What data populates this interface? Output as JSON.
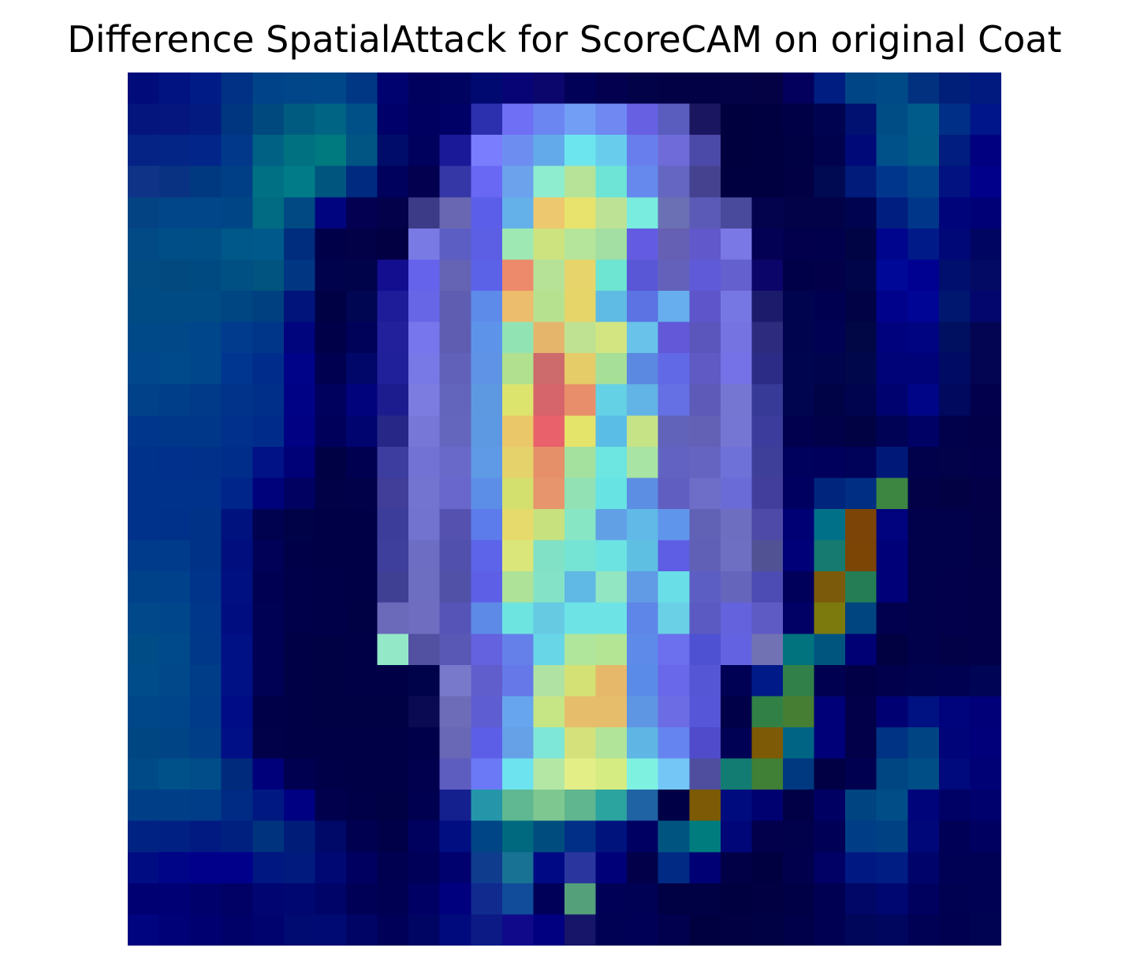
{
  "chart_data": {
    "type": "heatmap",
    "title": "Difference SpatialAttack for ScoreCAM on original Coat",
    "axes_visible": false,
    "grid": false,
    "legend": "none",
    "rows": 28,
    "cols": 28,
    "cells": [
      [
        "#010b79",
        "#011381",
        "#011b86",
        "#003184",
        "#004388",
        "#004689",
        "#00478a",
        "#003784",
        "#00036f",
        "#00015e",
        "#000460",
        "#000970",
        "#070575",
        "#0b066b",
        "#020158",
        "#02004f",
        "#020248",
        "#030146",
        "#030146",
        "#030246",
        "#040244",
        "#02005c",
        "#001d81",
        "#004687",
        "#004a88",
        "#02327f",
        "#001f78",
        "#001a80"
      ],
      [
        "#04157d",
        "#05167f",
        "#031a81",
        "#00357f",
        "#00497e",
        "#005b80",
        "#006584",
        "#005088",
        "#00006a",
        "#000061",
        "#000167",
        "#2c2fae",
        "#6e6ff5",
        "#6b85f1",
        "#739ef6",
        "#6f88f2",
        "#6760e2",
        "#5a5cbe",
        "#1b1660",
        "#00003e",
        "#000041",
        "#000046",
        "#00034f",
        "#001171",
        "#004d86",
        "#005b8a",
        "#002f88",
        "#00158a"
      ],
      [
        "#042385",
        "#022586",
        "#02258a",
        "#01388a",
        "#006184",
        "#007180",
        "#00797f",
        "#005583",
        "#000c6a",
        "#00015c",
        "#1a1998",
        "#7a7dfd",
        "#6e8df1",
        "#62aae9",
        "#6de5ef",
        "#68cded",
        "#687eed",
        "#6f6bd8",
        "#4b4aa8",
        "#00003e",
        "#000041",
        "#000045",
        "#00024e",
        "#000978",
        "#00518a",
        "#005b87",
        "#001d7f",
        "#000080"
      ],
      [
        "#0f3487",
        "#093382",
        "#00397f",
        "#003f86",
        "#007185",
        "#007b87",
        "#00557e",
        "#002a80",
        "#00005d",
        "#02004f",
        "#3637a7",
        "#6968f5",
        "#6ca1ec",
        "#8dedce",
        "#b6e397",
        "#6de4d6",
        "#6589ed",
        "#6466c1",
        "#45438f",
        "#000040",
        "#000040",
        "#020045",
        "#000a52",
        "#001b79",
        "#00378d",
        "#00458b",
        "#021281",
        "#00008a"
      ],
      [
        "#034384",
        "#004688",
        "#004689",
        "#004686",
        "#006b82",
        "#004983",
        "#00047e",
        "#030051",
        "#030149",
        "#3c3b88",
        "#6a67b2",
        "#5a5ee9",
        "#64b1ea",
        "#edc86e",
        "#e8e36c",
        "#bde296",
        "#79ecdf",
        "#6a70b3",
        "#5b5ab6",
        "#4a4a9c",
        "#02034c",
        "#010248",
        "#010248",
        "#00034f",
        "#001e7f",
        "#00368a",
        "#00047a",
        "#000076"
      ],
      [
        "#014a86",
        "#004e88",
        "#004e86",
        "#00578a",
        "#00598b",
        "#002d7e",
        "#000049",
        "#020047",
        "#020043",
        "#7a7ae4",
        "#5c5ec3",
        "#5c5fe4",
        "#9ee9b3",
        "#cde37f",
        "#b4e59a",
        "#a3dfa2",
        "#635ce3",
        "#6560b4",
        "#6158cb",
        "#7a78e4",
        "#030154",
        "#02004d",
        "#00004d",
        "#000444",
        "#00058d",
        "#001a88",
        "#000877",
        "#010562"
      ],
      [
        "#024a82",
        "#02497f",
        "#004a82",
        "#005083",
        "#00547f",
        "#003682",
        "#00034c",
        "#00034a",
        "#120e8f",
        "#6563ec",
        "#6463b4",
        "#5c62e8",
        "#ed8a6b",
        "#b5e297",
        "#e7d46a",
        "#6de5d2",
        "#5a57d7",
        "#6461bb",
        "#5f5ad8",
        "#6461ce",
        "#0c0569",
        "#000048",
        "#010049",
        "#00054a",
        "#000898",
        "#000091",
        "#000f6e",
        "#030a63"
      ],
      [
        "#004b83",
        "#004b83",
        "#004b84",
        "#004683",
        "#004080",
        "#00147b",
        "#000045",
        "#000652",
        "#1e1c99",
        "#6766e7",
        "#5f5db2",
        "#5c8bea",
        "#ecbd6c",
        "#b6e28f",
        "#e6d568",
        "#5fbbe3",
        "#5b73e3",
        "#66aeed",
        "#5e55cb",
        "#7677e3",
        "#1c1a6b",
        "#00034e",
        "#000051",
        "#000245",
        "#00028b",
        "#000595",
        "#00176f",
        "#03066c"
      ],
      [
        "#004988",
        "#004888",
        "#00468a",
        "#003b8e",
        "#003689",
        "#00047d",
        "#000048",
        "#000158",
        "#22209b",
        "#7776ec",
        "#5e5db2",
        "#5d94ea",
        "#92e3b4",
        "#e5b56c",
        "#bfe292",
        "#d2e581",
        "#68c2ea",
        "#6258d8",
        "#5b56bc",
        "#7572e2",
        "#2c2b7e",
        "#00034e",
        "#000152",
        "#000744",
        "#00027d",
        "#000481",
        "#001060",
        "#030552"
      ],
      [
        "#01478c",
        "#004a8b",
        "#00468a",
        "#00368f",
        "#002d8c",
        "#000288",
        "#000051",
        "#000769",
        "#20209b",
        "#7878e6",
        "#6261ba",
        "#5e93e5",
        "#b1e08e",
        "#cd6a6b",
        "#e5cc69",
        "#a6df98",
        "#5b88e0",
        "#6269e6",
        "#5f5ac4",
        "#7472e6",
        "#2c2c87",
        "#00054f",
        "#00044c",
        "#00074b",
        "#000377",
        "#000377",
        "#000c63",
        "#040552"
      ],
      [
        "#00418a",
        "#003e8a",
        "#003a88",
        "#003389",
        "#002f89",
        "#000286",
        "#00005d",
        "#00037b",
        "#1c1c8e",
        "#7c7be0",
        "#6364bc",
        "#5d99e1",
        "#dde46d",
        "#d6656b",
        "#e98e6b",
        "#65d1e4",
        "#62b3e6",
        "#6470e4",
        "#5d5ab8",
        "#7576d2",
        "#373a96",
        "#00054f",
        "#000346",
        "#00034e",
        "#00036f",
        "#000588",
        "#00095d",
        "#02004c"
      ],
      [
        "#00368b",
        "#003789",
        "#003788",
        "#00308b",
        "#002b8a",
        "#000183",
        "#00005b",
        "#00046f",
        "#262786",
        "#7777d8",
        "#6466bd",
        "#5c99e2",
        "#eac86a",
        "#e9626b",
        "#e4e36a",
        "#5abde6",
        "#c6e486",
        "#6162b9",
        "#6261b6",
        "#7576d3",
        "#3b3c9c",
        "#00004f",
        "#000149",
        "#000243",
        "#000255",
        "#000165",
        "#00004b",
        "#020049"
      ],
      [
        "#00318b",
        "#00308b",
        "#003089",
        "#002c8a",
        "#001286",
        "#000077",
        "#000045",
        "#000050",
        "#3c3d9e",
        "#7272d4",
        "#6869c9",
        "#5e9ae6",
        "#e6d26b",
        "#e6906a",
        "#a4e09e",
        "#6de5e1",
        "#a8e4a3",
        "#6262c3",
        "#6564c1",
        "#6e72d8",
        "#3e3f98",
        "#00015c",
        "#00005c",
        "#000159",
        "#001979",
        "#01004b",
        "#010249",
        "#02004b"
      ],
      [
        "#00318b",
        "#00318b",
        "#00318b",
        "#00258a",
        "#00027b",
        "#000160",
        "#000146",
        "#000148",
        "#403e98",
        "#7373d0",
        "#6967cb",
        "#5c8ee8",
        "#d4e06e",
        "#e6956c",
        "#91e1b5",
        "#67e3e4",
        "#5c8ee4",
        "#605fc1",
        "#6e6ec9",
        "#6a6bd6",
        "#423f9c",
        "#000060",
        "#00257d",
        "#002e82",
        "#3c8642",
        "#020047",
        "#010144",
        "#030047"
      ],
      [
        "#00328c",
        "#00318a",
        "#003288",
        "#00127d",
        "#000250",
        "#000248",
        "#000046",
        "#000047",
        "#3c3c9a",
        "#7173ce",
        "#5452ae",
        "#5c7ceb",
        "#e5da6b",
        "#c8e17f",
        "#87e6c3",
        "#62a0e6",
        "#60b9e6",
        "#6095ec",
        "#6161b6",
        "#6e6ec1",
        "#4e4ba8",
        "#000075",
        "#007089",
        "#7c4406",
        "#00037d",
        "#01004b",
        "#01004a",
        "#020047"
      ],
      [
        "#003a8a",
        "#003a8a",
        "#003387",
        "#000f7d",
        "#000157",
        "#000049",
        "#000047",
        "#000046",
        "#3e3f9d",
        "#6d6dc4",
        "#5150ac",
        "#5d64e9",
        "#dbe67a",
        "#80e1c6",
        "#75e4d4",
        "#6de3e1",
        "#5fbfe3",
        "#5e5ee4",
        "#6060b6",
        "#6e6ec3",
        "#515294",
        "#000078",
        "#167a70",
        "#7c4506",
        "#000079",
        "#01004b",
        "#01004a",
        "#020047"
      ],
      [
        "#00428a",
        "#00418b",
        "#00338a",
        "#001080",
        "#000052",
        "#00004a",
        "#000048",
        "#000047",
        "#3f3f93",
        "#6d6dc1",
        "#5151a8",
        "#5d60e7",
        "#aee299",
        "#84e3c6",
        "#60b8e5",
        "#93e6c2",
        "#619ae5",
        "#69dee6",
        "#5d5ec4",
        "#6566bb",
        "#4d4cb4",
        "#00005a",
        "#7c5a0c",
        "#247d54",
        "#000078",
        "#01004b",
        "#02004b",
        "#020049"
      ],
      [
        "#00488a",
        "#00468a",
        "#00378a",
        "#000d80",
        "#000054",
        "#00004a",
        "#000049",
        "#000045",
        "#6a69ba",
        "#6e6dc0",
        "#5654b7",
        "#5d8ae7",
        "#6de4e0",
        "#66cae3",
        "#6de3e5",
        "#6de3e5",
        "#5e85e8",
        "#6ad0e5",
        "#5b5ac2",
        "#6462dc",
        "#5e5bc5",
        "#000065",
        "#7c790d",
        "#004480",
        "#01004e",
        "#01004b",
        "#02004b",
        "#020049"
      ],
      [
        "#004c86",
        "#00498a",
        "#003889",
        "#001085",
        "#000055",
        "#000047",
        "#000044",
        "#000046",
        "#93e8c8",
        "#5250a0",
        "#5958b5",
        "#6462de",
        "#6680ea",
        "#69d6e7",
        "#b0e59c",
        "#b3e594",
        "#5e8ae9",
        "#6c6fee",
        "#4e52d2",
        "#6362e0",
        "#7172b3",
        "#00737e",
        "#00557f",
        "#000075",
        "#010041",
        "#01004b",
        "#020047",
        "#020049"
      ],
      [
        "#004b89",
        "#00488a",
        "#003d89",
        "#001186",
        "#000054",
        "#000047",
        "#000045",
        "#000046",
        "#000046",
        "#00024a",
        "#7979cb",
        "#605ecc",
        "#6678e7",
        "#b0e3a3",
        "#d4e174",
        "#e6b869",
        "#5b8be8",
        "#6967ea",
        "#5556d6",
        "#000155",
        "#001a88",
        "#328049",
        "#000051",
        "#010047",
        "#00004d",
        "#00014f",
        "#000251",
        "#000455"
      ],
      [
        "#00478a",
        "#00448a",
        "#003b8a",
        "#000c85",
        "#000048",
        "#000047",
        "#000045",
        "#000045",
        "#000045",
        "#0a0a52",
        "#6d6cb8",
        "#5e5ed2",
        "#67a6ee",
        "#c6e686",
        "#e6be6b",
        "#e6be6b",
        "#5f96e4",
        "#6c6de4",
        "#5556d8",
        "#000048",
        "#318147",
        "#467e34",
        "#000078",
        "#010049",
        "#010073",
        "#001181",
        "#00047c",
        "#010079"
      ],
      [
        "#004683",
        "#004486",
        "#003e87",
        "#000f86",
        "#000149",
        "#000047",
        "#000046",
        "#000046",
        "#000046",
        "#00004a",
        "#6868b6",
        "#5d5ee8",
        "#66a0e7",
        "#7fe7d7",
        "#d5e17a",
        "#b1e499",
        "#5fb6e5",
        "#6584ef",
        "#4f4bca",
        "#000054",
        "#7c5a06",
        "#006585",
        "#000079",
        "#010049",
        "#003383",
        "#004484",
        "#000479",
        "#01007a"
      ],
      [
        "#004b87",
        "#00508a",
        "#004d8a",
        "#002a7c",
        "#00007a",
        "#000050",
        "#000049",
        "#000047",
        "#000047",
        "#00004e",
        "#5d5dc0",
        "#6b79f6",
        "#6de3ef",
        "#b5e7a4",
        "#e3ee87",
        "#d5ec82",
        "#7ff1e1",
        "#73c6f5",
        "#4f4e9e",
        "#137c72",
        "#3f7f36",
        "#003980",
        "#010045",
        "#000050",
        "#004683",
        "#004e86",
        "#000a7d",
        "#000174"
      ],
      [
        "#003f88",
        "#003f88",
        "#003d88",
        "#002b84",
        "#001982",
        "#000082",
        "#00004d",
        "#000048",
        "#000045",
        "#000050",
        "#14208e",
        "#2596a9",
        "#5fb891",
        "#7fc790",
        "#5fb68f",
        "#2ba39f",
        "#1f63a4",
        "#000047",
        "#7c5a06",
        "#000c7e",
        "#000171",
        "#010046",
        "#000063",
        "#004481",
        "#004d88",
        "#00047b",
        "#000165",
        "#00016d"
      ],
      [
        "#002383",
        "#002183",
        "#001a82",
        "#002080",
        "#00337d",
        "#001c79",
        "#000868",
        "#000050",
        "#000049",
        "#00005f",
        "#000e81",
        "#004585",
        "#00697f",
        "#004c7f",
        "#012f87",
        "#00137d",
        "#000063",
        "#005580",
        "#007c7e",
        "#000677",
        "#02004b",
        "#01004b",
        "#000056",
        "#003d87",
        "#004183",
        "#000779",
        "#010057",
        "#000060"
      ],
      [
        "#000c82",
        "#000487",
        "#00008a",
        "#00008a",
        "#001680",
        "#001b7d",
        "#000873",
        "#000060",
        "#000051",
        "#000058",
        "#00006e",
        "#0f3c8d",
        "#187294",
        "#000984",
        "#2a369d",
        "#000078",
        "#020049",
        "#002a84",
        "#000075",
        "#010047",
        "#000040",
        "#00004d",
        "#000065",
        "#001982",
        "#001d84",
        "#00046a",
        "#000155",
        "#000055"
      ],
      [
        "#000073",
        "#000075",
        "#00016a",
        "#000065",
        "#000572",
        "#000771",
        "#000468",
        "#000056",
        "#000053",
        "#000064",
        "#00007f",
        "#102a8e",
        "#104c99",
        "#000059",
        "#54a07b",
        "#000056",
        "#000054",
        "#000044",
        "#000044",
        "#000040",
        "#000043",
        "#000047",
        "#000052",
        "#000766",
        "#000771",
        "#00005e",
        "#000150",
        "#000152"
      ],
      [
        "#00047e",
        "#000077",
        "#000070",
        "#000069",
        "#00026d",
        "#000b71",
        "#000a73",
        "#000464",
        "#000058",
        "#000463",
        "#000a7c",
        "#0b1a85",
        "#100a8b",
        "#010081",
        "#16156a",
        "#000054",
        "#000056",
        "#00004e",
        "#000041",
        "#000042",
        "#000044",
        "#00004a",
        "#000052",
        "#000659",
        "#00065d",
        "#000055",
        "#000050",
        "#000252"
      ]
    ]
  }
}
